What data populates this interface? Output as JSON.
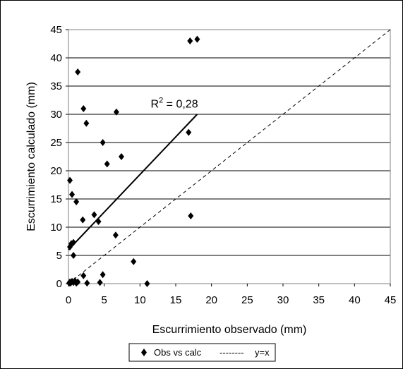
{
  "chart_data": {
    "type": "scatter",
    "xlabel": "Escurrimiento observado (mm)",
    "ylabel": "Escurrimiento calculado (mm)",
    "xlim": [
      0,
      45
    ],
    "ylim": [
      0,
      45
    ],
    "xticks": [
      0,
      5,
      10,
      15,
      20,
      25,
      30,
      35,
      40,
      45
    ],
    "yticks": [
      0,
      5,
      10,
      15,
      20,
      25,
      30,
      35,
      40,
      45
    ],
    "grid": "horizontal",
    "legend_position": "bottom",
    "series": [
      {
        "name": "Obs vs calc",
        "marker": "diamond",
        "color": "#000000",
        "points": [
          [
            0.1,
            0.1
          ],
          [
            0.2,
            0.3
          ],
          [
            0.3,
            0.1
          ],
          [
            0.5,
            0.4
          ],
          [
            0.7,
            0.2
          ],
          [
            0.9,
            0.5
          ],
          [
            1.1,
            0.1
          ],
          [
            1.3,
            0.3
          ],
          [
            0.2,
            6.5
          ],
          [
            0.4,
            7.1
          ],
          [
            0.7,
            7.3
          ],
          [
            0.7,
            5.0
          ],
          [
            0.2,
            18.3
          ],
          [
            0.5,
            15.8
          ],
          [
            1.1,
            14.5
          ],
          [
            1.3,
            37.5
          ],
          [
            2.1,
            31.0
          ],
          [
            2.5,
            28.4
          ],
          [
            2.0,
            11.3
          ],
          [
            2.1,
            1.4
          ],
          [
            2.6,
            0.1
          ],
          [
            3.6,
            12.2
          ],
          [
            4.2,
            11.0
          ],
          [
            4.4,
            0.2
          ],
          [
            4.8,
            25.0
          ],
          [
            4.8,
            1.6
          ],
          [
            5.4,
            21.2
          ],
          [
            6.7,
            30.4
          ],
          [
            6.6,
            8.6
          ],
          [
            7.4,
            22.5
          ],
          [
            9.1,
            3.9
          ],
          [
            11.0,
            0.0
          ],
          [
            16.8,
            26.8
          ],
          [
            17.0,
            43.0
          ],
          [
            17.1,
            12.0
          ],
          [
            18.0,
            43.3
          ]
        ]
      },
      {
        "name": "y=x",
        "style": "dashed",
        "color": "#000000",
        "line": [
          [
            0,
            0
          ],
          [
            45,
            45
          ]
        ]
      }
    ],
    "trendline": {
      "from": [
        0,
        6.0
      ],
      "to": [
        18,
        30.0
      ],
      "label": "R² = 0,28"
    },
    "legend": {
      "entries": [
        "Obs vs calc",
        "y=x"
      ],
      "dash_text": "--------"
    }
  }
}
